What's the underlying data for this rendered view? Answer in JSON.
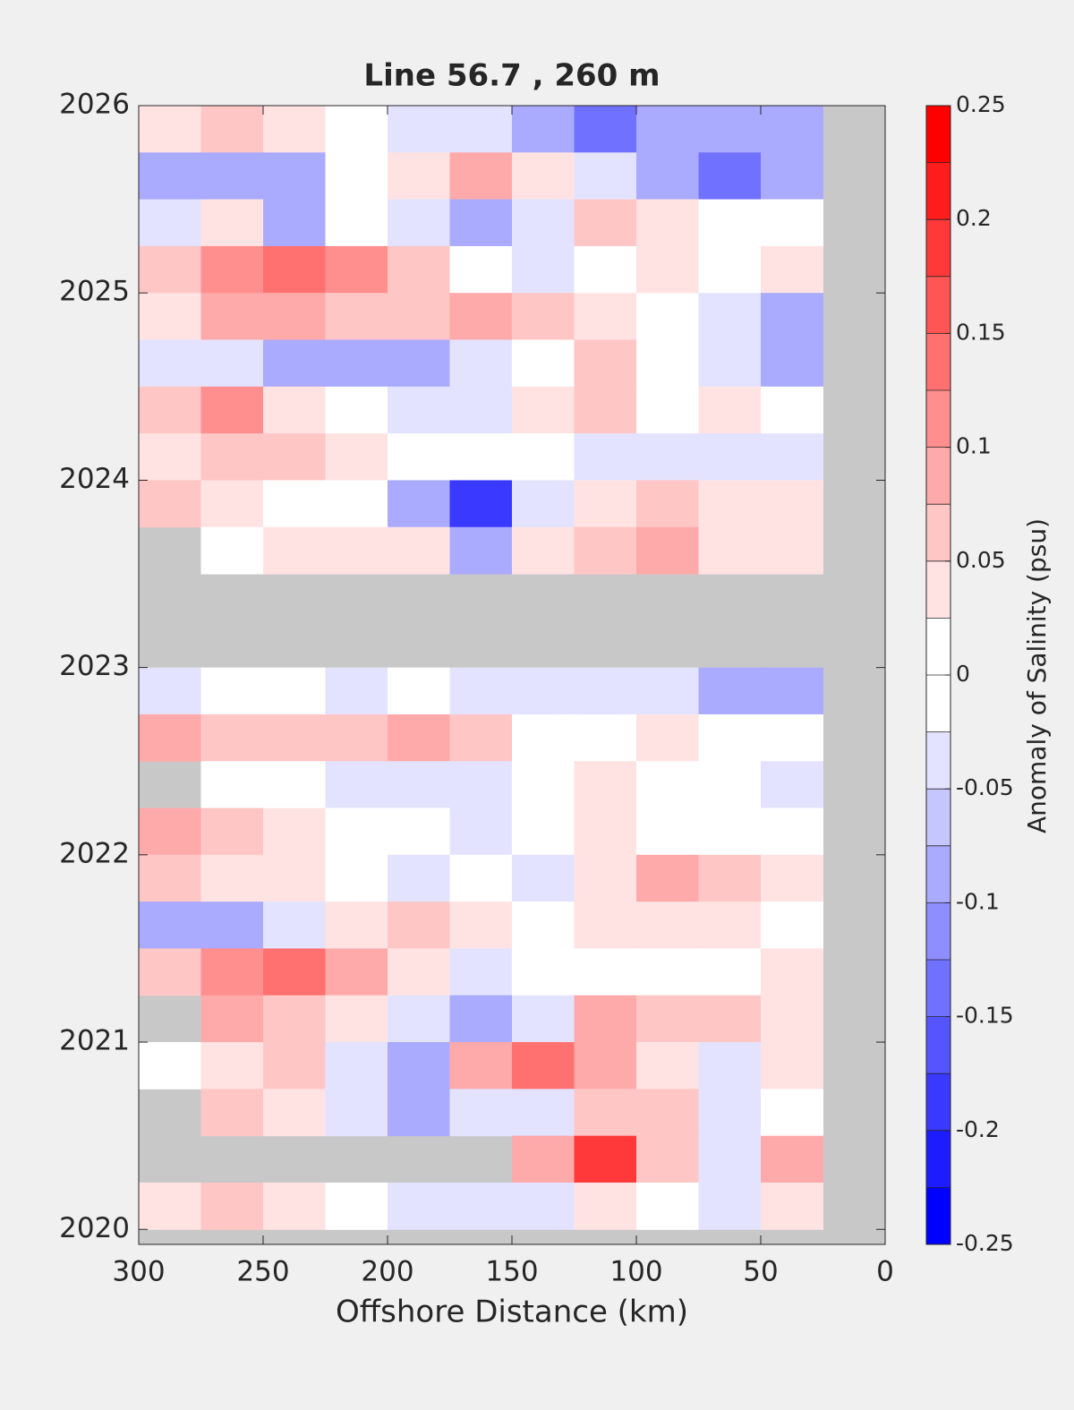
{
  "chart_data": {
    "type": "contour",
    "title": "Line 56.7 , 260 m",
    "xlabel": "Offshore Distance (km)",
    "colorbar_label": "Anomaly of Salinity (psu)",
    "xlim": [
      300,
      0
    ],
    "xticks": [
      300,
      250,
      200,
      150,
      100,
      50,
      0
    ],
    "ylim": [
      2019.92,
      2026
    ],
    "yticks": [
      2020,
      2021,
      2022,
      2023,
      2024,
      2025,
      2026
    ],
    "clim": [
      -0.25,
      0.25
    ],
    "cticks": [
      -0.25,
      -0.2,
      -0.15,
      -0.1,
      -0.05,
      0,
      0.05,
      0.1,
      0.15,
      0.2,
      0.25
    ],
    "levels": [
      -0.25,
      -0.225,
      -0.2,
      -0.175,
      -0.15,
      -0.125,
      -0.1,
      -0.075,
      -0.05,
      -0.025,
      0,
      0.025,
      0.05,
      0.075,
      0.1,
      0.125,
      0.15,
      0.175,
      0.2,
      0.225,
      0.25
    ],
    "colormap": [
      "#0000ff",
      "#ffffff",
      "#ff0000"
    ],
    "missing_color": "#c8c8c8",
    "x": [
      287.5,
      262.5,
      237.5,
      212.5,
      187.5,
      162.5,
      137.5,
      112.5,
      87.5,
      62.5,
      37.5
    ],
    "y": [
      2025.875,
      2025.625,
      2025.375,
      2025.125,
      2024.875,
      2024.625,
      2024.375,
      2024.125,
      2023.875,
      2023.625,
      2023.375,
      2023.125,
      2022.875,
      2022.625,
      2022.375,
      2022.125,
      2021.875,
      2021.625,
      2021.375,
      2021.125,
      2020.875,
      2020.625,
      2020.375,
      2020.125
    ],
    "z": [
      [
        0.03,
        0.05,
        0.03,
        0,
        -0.03,
        -0.05,
        -0.08,
        -0.15,
        -0.1,
        -0.1,
        -0.08
      ],
      [
        -0.08,
        -0.1,
        -0.08,
        0,
        0.03,
        0.08,
        0.03,
        -0.05,
        -0.08,
        -0.15,
        -0.08
      ],
      [
        -0.05,
        0.03,
        -0.08,
        0,
        -0.05,
        -0.1,
        -0.05,
        0.05,
        0.03,
        0,
        0
      ],
      [
        0.05,
        0.1,
        0.13,
        0.1,
        0.05,
        0,
        -0.03,
        0,
        0.03,
        0,
        0.03
      ],
      [
        0.03,
        0.08,
        0.08,
        0.05,
        0.05,
        0.08,
        0.05,
        0.03,
        0,
        -0.05,
        -0.08
      ],
      [
        -0.05,
        -0.05,
        -0.08,
        -0.1,
        -0.08,
        -0.03,
        0,
        0.05,
        0,
        -0.05,
        -0.08
      ],
      [
        0.05,
        0.1,
        0.03,
        0,
        -0.03,
        -0.05,
        0.03,
        0.05,
        0,
        0.03,
        0
      ],
      [
        0.03,
        0.05,
        0.05,
        0.03,
        0,
        0,
        0,
        -0.03,
        -0.05,
        -0.05,
        -0.05
      ],
      [
        0.05,
        0.03,
        0,
        0,
        -0.1,
        -0.2,
        -0.05,
        0.03,
        0.05,
        0.03,
        0.03
      ],
      [
        null,
        0,
        0.03,
        0.03,
        0.03,
        -0.08,
        0.03,
        0.05,
        0.08,
        0.03,
        0.03
      ],
      [
        null,
        null,
        null,
        null,
        null,
        null,
        null,
        null,
        null,
        null,
        null
      ],
      [
        null,
        null,
        null,
        null,
        null,
        null,
        null,
        null,
        null,
        null,
        null
      ],
      [
        -0.05,
        0,
        0,
        -0.03,
        0,
        -0.03,
        -0.03,
        -0.03,
        -0.05,
        -0.08,
        -0.1
      ],
      [
        0.08,
        0.05,
        0.05,
        0.05,
        0.08,
        0.05,
        0,
        0,
        0.03,
        0,
        0
      ],
      [
        null,
        0,
        0,
        -0.03,
        -0.05,
        -0.03,
        0,
        0.03,
        0,
        0,
        -0.03
      ],
      [
        0.08,
        0.05,
        0.03,
        0,
        0,
        -0.03,
        0,
        0.03,
        0,
        0,
        0
      ],
      [
        0.05,
        0.03,
        0.03,
        0,
        -0.05,
        0,
        -0.03,
        0.03,
        0.08,
        0.05,
        0.03
      ],
      [
        -0.08,
        -0.08,
        -0.05,
        0.03,
        0.05,
        0.03,
        0,
        0.03,
        0.03,
        0.03,
        0
      ],
      [
        0.05,
        0.1,
        0.13,
        0.08,
        0.03,
        -0.05,
        0,
        0,
        0,
        0,
        0.03
      ],
      [
        null,
        0.08,
        0.05,
        0.03,
        -0.05,
        -0.08,
        -0.05,
        0.08,
        0.05,
        0.05,
        0.03
      ],
      [
        0,
        0.03,
        0.05,
        -0.05,
        -0.08,
        0.08,
        0.13,
        0.08,
        0.03,
        -0.03,
        0.03
      ],
      [
        null,
        0.05,
        0.03,
        -0.03,
        -0.08,
        -0.05,
        -0.03,
        0.05,
        0.05,
        -0.03,
        0
      ],
      [
        null,
        null,
        null,
        null,
        null,
        null,
        0.08,
        0.18,
        0.05,
        -0.03,
        0.08
      ],
      [
        0.03,
        0.05,
        0.03,
        0,
        -0.03,
        -0.05,
        -0.03,
        0.03,
        0,
        -0.05,
        0.03
      ]
    ]
  }
}
